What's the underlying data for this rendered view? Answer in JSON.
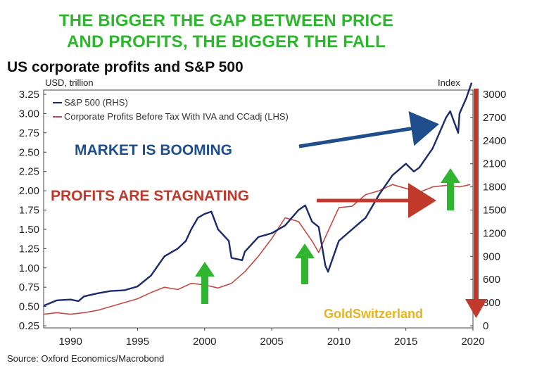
{
  "headline": {
    "line1": "THE BIGGER THE GAP BETWEEN PRICE",
    "line2": "AND PROFITS, THE BIGGER THE FALL"
  },
  "colors": {
    "headline": "#2db52d",
    "sp500": "#1b2a6b",
    "profits": "#c24a44",
    "market_callout": "#1f4e8c",
    "profits_callout": "#c0392b",
    "green_arrow": "#2fb52f",
    "drop_arrow": "#c0392b",
    "brand": "#e8b21c"
  },
  "chart_data": {
    "type": "line",
    "title": "US corporate profits and S&P 500",
    "ylabel_left": "USD, trillion",
    "ylabel_right": "Index",
    "xlim": [
      1988,
      2020
    ],
    "ylim_left": [
      0.25,
      3.25
    ],
    "ylim_right": [
      0,
      3000
    ],
    "x_ticks": [
      "1990",
      "1995",
      "2000",
      "2005",
      "2010",
      "2015",
      "2020"
    ],
    "left_ticks": [
      "3.25",
      "3.00",
      "2.75",
      "2.50",
      "2.25",
      "2.00",
      "1.75",
      "1.50",
      "1.25",
      "1.00",
      "0.75",
      "0.50",
      "0.25"
    ],
    "right_ticks": [
      "3000",
      "2700",
      "2400",
      "2100",
      "1800",
      "1500",
      "1200",
      "900",
      "600",
      "300",
      "0"
    ],
    "legend_position": "top-left",
    "grid": false,
    "series": [
      {
        "name": "S&P 500 (RHS)",
        "axis": "right",
        "x": [
          1988,
          1989,
          1990,
          1990.6,
          1991,
          1992,
          1993,
          1994,
          1995,
          1996,
          1997,
          1998,
          1998.6,
          1999,
          1999.5,
          2000,
          2000.5,
          2001,
          2001.8,
          2002,
          2002.8,
          2003,
          2004,
          2005,
          2006,
          2007,
          2007.5,
          2008,
          2008.5,
          2009,
          2009.2,
          2010,
          2011,
          2012,
          2013,
          2014,
          2015,
          2015.6,
          2016,
          2017,
          2018,
          2018.3,
          2018.9,
          2019,
          2019.5,
          2019.9
        ],
        "y": [
          260,
          330,
          340,
          320,
          380,
          420,
          450,
          460,
          510,
          650,
          900,
          1000,
          1100,
          1250,
          1400,
          1450,
          1480,
          1250,
          1100,
          880,
          850,
          960,
          1150,
          1200,
          1300,
          1500,
          1560,
          1350,
          1280,
          780,
          700,
          1100,
          1250,
          1400,
          1700,
          1950,
          2100,
          2000,
          2050,
          2300,
          2700,
          2780,
          2500,
          2750,
          2950,
          3150
        ]
      },
      {
        "name": "Corporate Profits Before Tax With IVA and CCadj (LHS)",
        "axis": "left",
        "x": [
          1988,
          1989,
          1990,
          1991,
          1992,
          1993,
          1994,
          1995,
          1996,
          1997,
          1998,
          1999,
          2000,
          2001,
          2002,
          2003,
          2004,
          2005,
          2006,
          2007,
          2008,
          2008.5,
          2009,
          2010,
          2011,
          2012,
          2013,
          2014,
          2015,
          2016,
          2017,
          2018,
          2019,
          2019.8
        ],
        "y": [
          0.4,
          0.42,
          0.4,
          0.42,
          0.45,
          0.5,
          0.55,
          0.6,
          0.68,
          0.75,
          0.72,
          0.8,
          0.78,
          0.74,
          0.8,
          0.95,
          1.15,
          1.38,
          1.65,
          1.6,
          1.35,
          1.2,
          1.4,
          1.78,
          1.8,
          1.95,
          2.0,
          2.08,
          2.03,
          1.98,
          2.05,
          2.07,
          2.05,
          2.08
        ]
      }
    ],
    "annotations": [
      "MARKET IS BOOMING",
      "PROFITS ARE STAGNATING"
    ],
    "brand": "GoldSwitzerland",
    "source": "Source: Oxford Economics/Macrobond"
  }
}
